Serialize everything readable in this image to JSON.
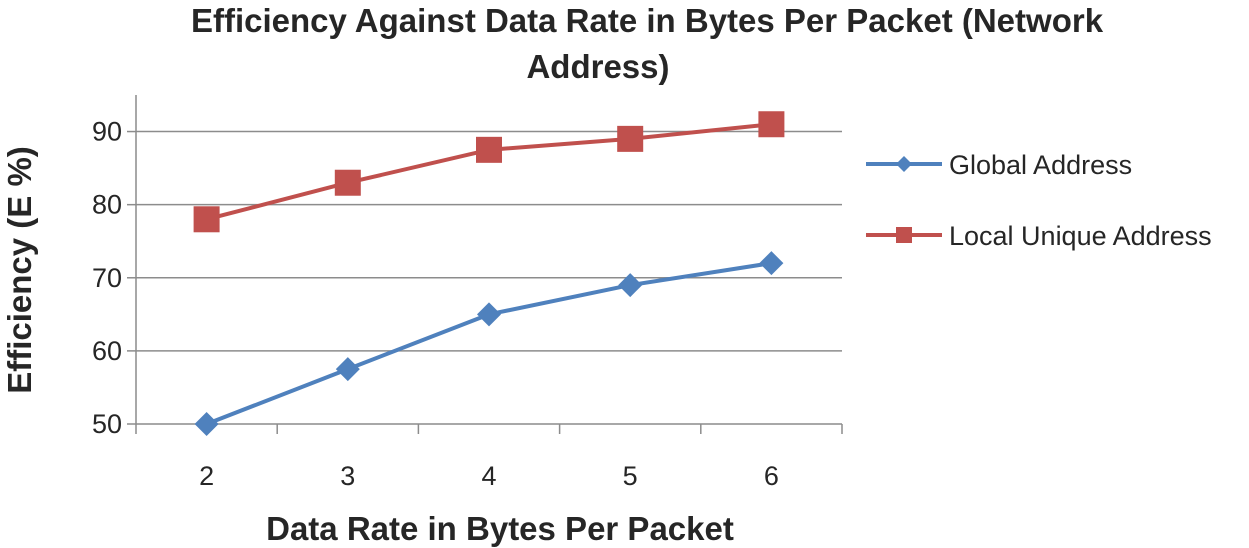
{
  "chart_data": {
    "type": "line",
    "title_lines": [
      "Efficiency Against Data Rate in Bytes Per Packet (Network",
      "Address)"
    ],
    "xlabel": "Data Rate in Bytes Per Packet",
    "ylabel": "Efficiency (E %)",
    "x": [
      2,
      3,
      4,
      5,
      6
    ],
    "x_tick_labels": [
      "2",
      "3",
      "4",
      "5",
      "6"
    ],
    "y_ticks": [
      50,
      60,
      70,
      80,
      90
    ],
    "y_tick_labels": [
      "50",
      "60",
      "70",
      "80",
      "90"
    ],
    "ylim": [
      50,
      95
    ],
    "grid": "horizontal",
    "legend": "right",
    "series": [
      {
        "name": "Global Address",
        "values": [
          50,
          57.5,
          65,
          69,
          72
        ],
        "color": "#4f81bd",
        "marker": "diamond-icon"
      },
      {
        "name": "Local Unique Address",
        "values": [
          78,
          83,
          87.5,
          89,
          91
        ],
        "color": "#c0504d",
        "marker": "square-icon"
      }
    ]
  }
}
